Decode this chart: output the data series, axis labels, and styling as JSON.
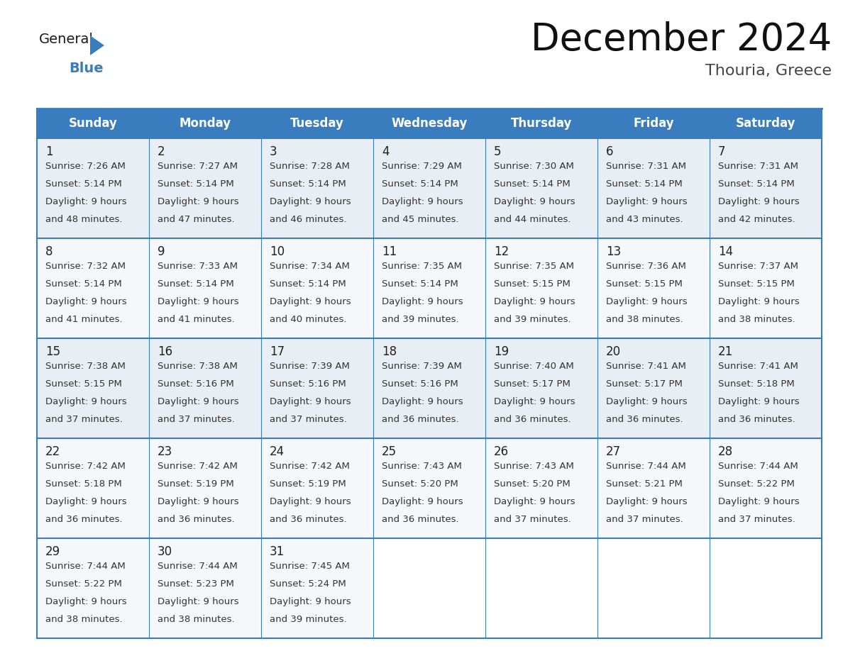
{
  "title": "December 2024",
  "subtitle": "Thouria, Greece",
  "header_color": "#3a7dbf",
  "header_text_color": "#ffffff",
  "cell_bg_odd": "#e8eef4",
  "cell_bg_even": "#f5f7fa",
  "cell_bg_last": "#f5f7fa",
  "empty_cell_bg": "#ffffff",
  "border_color": "#3a7dbf",
  "text_color": "#333333",
  "day_number_color": "#222222",
  "day_headers": [
    "Sunday",
    "Monday",
    "Tuesday",
    "Wednesday",
    "Thursday",
    "Friday",
    "Saturday"
  ],
  "days": [
    {
      "day": 1,
      "col": 0,
      "row": 0,
      "sunrise": "7:26 AM",
      "sunset": "5:14 PM",
      "daylight": "9 hours and 48 minutes."
    },
    {
      "day": 2,
      "col": 1,
      "row": 0,
      "sunrise": "7:27 AM",
      "sunset": "5:14 PM",
      "daylight": "9 hours and 47 minutes."
    },
    {
      "day": 3,
      "col": 2,
      "row": 0,
      "sunrise": "7:28 AM",
      "sunset": "5:14 PM",
      "daylight": "9 hours and 46 minutes."
    },
    {
      "day": 4,
      "col": 3,
      "row": 0,
      "sunrise": "7:29 AM",
      "sunset": "5:14 PM",
      "daylight": "9 hours and 45 minutes."
    },
    {
      "day": 5,
      "col": 4,
      "row": 0,
      "sunrise": "7:30 AM",
      "sunset": "5:14 PM",
      "daylight": "9 hours and 44 minutes."
    },
    {
      "day": 6,
      "col": 5,
      "row": 0,
      "sunrise": "7:31 AM",
      "sunset": "5:14 PM",
      "daylight": "9 hours and 43 minutes."
    },
    {
      "day": 7,
      "col": 6,
      "row": 0,
      "sunrise": "7:31 AM",
      "sunset": "5:14 PM",
      "daylight": "9 hours and 42 minutes."
    },
    {
      "day": 8,
      "col": 0,
      "row": 1,
      "sunrise": "7:32 AM",
      "sunset": "5:14 PM",
      "daylight": "9 hours and 41 minutes."
    },
    {
      "day": 9,
      "col": 1,
      "row": 1,
      "sunrise": "7:33 AM",
      "sunset": "5:14 PM",
      "daylight": "9 hours and 41 minutes."
    },
    {
      "day": 10,
      "col": 2,
      "row": 1,
      "sunrise": "7:34 AM",
      "sunset": "5:14 PM",
      "daylight": "9 hours and 40 minutes."
    },
    {
      "day": 11,
      "col": 3,
      "row": 1,
      "sunrise": "7:35 AM",
      "sunset": "5:14 PM",
      "daylight": "9 hours and 39 minutes."
    },
    {
      "day": 12,
      "col": 4,
      "row": 1,
      "sunrise": "7:35 AM",
      "sunset": "5:15 PM",
      "daylight": "9 hours and 39 minutes."
    },
    {
      "day": 13,
      "col": 5,
      "row": 1,
      "sunrise": "7:36 AM",
      "sunset": "5:15 PM",
      "daylight": "9 hours and 38 minutes."
    },
    {
      "day": 14,
      "col": 6,
      "row": 1,
      "sunrise": "7:37 AM",
      "sunset": "5:15 PM",
      "daylight": "9 hours and 38 minutes."
    },
    {
      "day": 15,
      "col": 0,
      "row": 2,
      "sunrise": "7:38 AM",
      "sunset": "5:15 PM",
      "daylight": "9 hours and 37 minutes."
    },
    {
      "day": 16,
      "col": 1,
      "row": 2,
      "sunrise": "7:38 AM",
      "sunset": "5:16 PM",
      "daylight": "9 hours and 37 minutes."
    },
    {
      "day": 17,
      "col": 2,
      "row": 2,
      "sunrise": "7:39 AM",
      "sunset": "5:16 PM",
      "daylight": "9 hours and 37 minutes."
    },
    {
      "day": 18,
      "col": 3,
      "row": 2,
      "sunrise": "7:39 AM",
      "sunset": "5:16 PM",
      "daylight": "9 hours and 36 minutes."
    },
    {
      "day": 19,
      "col": 4,
      "row": 2,
      "sunrise": "7:40 AM",
      "sunset": "5:17 PM",
      "daylight": "9 hours and 36 minutes."
    },
    {
      "day": 20,
      "col": 5,
      "row": 2,
      "sunrise": "7:41 AM",
      "sunset": "5:17 PM",
      "daylight": "9 hours and 36 minutes."
    },
    {
      "day": 21,
      "col": 6,
      "row": 2,
      "sunrise": "7:41 AM",
      "sunset": "5:18 PM",
      "daylight": "9 hours and 36 minutes."
    },
    {
      "day": 22,
      "col": 0,
      "row": 3,
      "sunrise": "7:42 AM",
      "sunset": "5:18 PM",
      "daylight": "9 hours and 36 minutes."
    },
    {
      "day": 23,
      "col": 1,
      "row": 3,
      "sunrise": "7:42 AM",
      "sunset": "5:19 PM",
      "daylight": "9 hours and 36 minutes."
    },
    {
      "day": 24,
      "col": 2,
      "row": 3,
      "sunrise": "7:42 AM",
      "sunset": "5:19 PM",
      "daylight": "9 hours and 36 minutes."
    },
    {
      "day": 25,
      "col": 3,
      "row": 3,
      "sunrise": "7:43 AM",
      "sunset": "5:20 PM",
      "daylight": "9 hours and 36 minutes."
    },
    {
      "day": 26,
      "col": 4,
      "row": 3,
      "sunrise": "7:43 AM",
      "sunset": "5:20 PM",
      "daylight": "9 hours and 37 minutes."
    },
    {
      "day": 27,
      "col": 5,
      "row": 3,
      "sunrise": "7:44 AM",
      "sunset": "5:21 PM",
      "daylight": "9 hours and 37 minutes."
    },
    {
      "day": 28,
      "col": 6,
      "row": 3,
      "sunrise": "7:44 AM",
      "sunset": "5:22 PM",
      "daylight": "9 hours and 37 minutes."
    },
    {
      "day": 29,
      "col": 0,
      "row": 4,
      "sunrise": "7:44 AM",
      "sunset": "5:22 PM",
      "daylight": "9 hours and 38 minutes."
    },
    {
      "day": 30,
      "col": 1,
      "row": 4,
      "sunrise": "7:44 AM",
      "sunset": "5:23 PM",
      "daylight": "9 hours and 38 minutes."
    },
    {
      "day": 31,
      "col": 2,
      "row": 4,
      "sunrise": "7:45 AM",
      "sunset": "5:24 PM",
      "daylight": "9 hours and 39 minutes."
    }
  ],
  "logo_text_general": "General",
  "logo_text_blue": "Blue",
  "logo_triangle_color": "#3a7dbf",
  "logo_general_color": "#1a1a1a",
  "logo_blue_color": "#3a7dbf",
  "title_fontsize": 38,
  "subtitle_fontsize": 16,
  "header_fontsize": 12,
  "day_number_fontsize": 12,
  "cell_text_fontsize": 9.5
}
